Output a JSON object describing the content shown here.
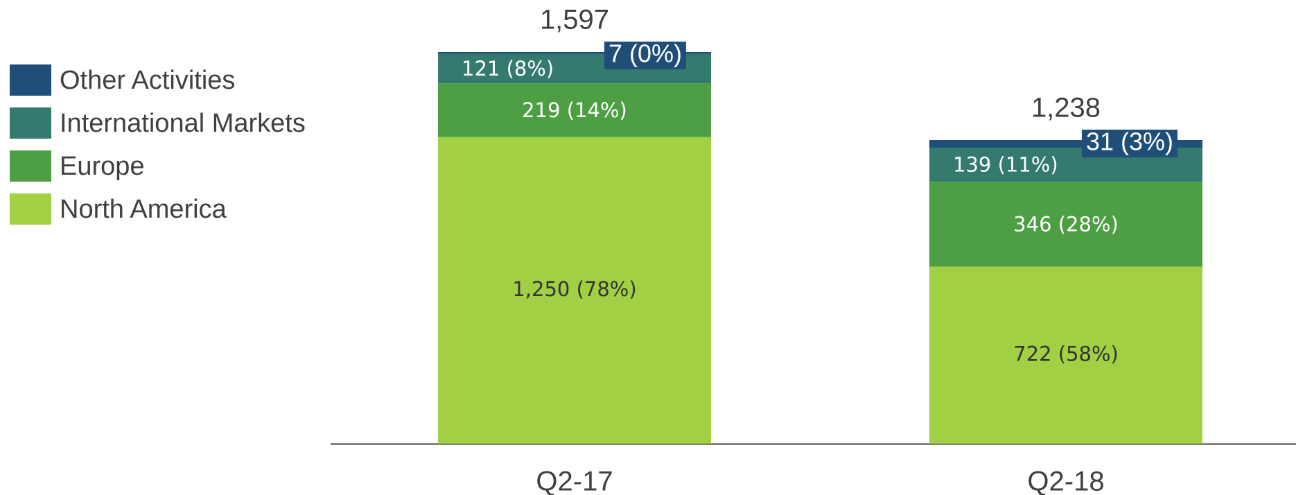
{
  "chart_data": {
    "type": "stacked_bar",
    "categories": [
      "Q2-17",
      "Q2-18"
    ],
    "series": [
      {
        "name": "North America",
        "color": "#a2d045",
        "values": [
          1250,
          722
        ],
        "value_labels": [
          "1,250 (78%)",
          "722 (58%)"
        ]
      },
      {
        "name": "Europe",
        "color": "#4e9f44",
        "values": [
          219,
          346
        ],
        "value_labels": [
          "219 (14%)",
          "346 (28%)"
        ]
      },
      {
        "name": "International Markets",
        "color": "#357a6e",
        "values": [
          121,
          139
        ],
        "value_labels": [
          "121 (8%)",
          "139 (11%)"
        ]
      },
      {
        "name": "Other Activities",
        "color": "#1f4e79",
        "values": [
          7,
          31
        ],
        "value_labels": [
          "7 (0%)",
          "31 (3%)"
        ]
      }
    ],
    "totals": {
      "values": [
        1597,
        1238
      ],
      "value_labels": [
        "1,597",
        "1,238"
      ]
    }
  }
}
